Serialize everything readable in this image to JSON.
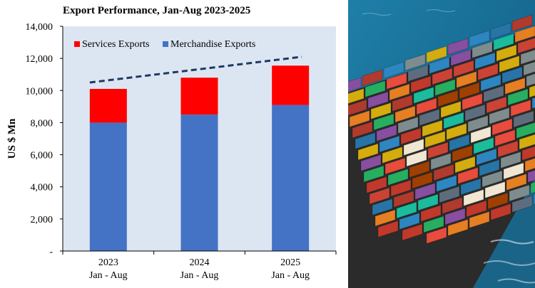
{
  "chart_data": {
    "type": "bar",
    "stacked": true,
    "title": "Export Performance, Jan-Aug  2023-2025",
    "xlabel": "",
    "ylabel": "US $ Mn",
    "categories": [
      {
        "year": "2023",
        "period": "Jan - Aug"
      },
      {
        "year": "2024",
        "period": "Jan - Aug"
      },
      {
        "year": "2025",
        "period": "Jan - Aug"
      }
    ],
    "series": [
      {
        "name": "Merchandise Exports",
        "color": "#4472C4",
        "values": [
          8000,
          8500,
          9100
        ]
      },
      {
        "name": "Services Exports",
        "color": "#FF0000",
        "values": [
          2100,
          2300,
          2450
        ]
      }
    ],
    "trendline": {
      "style": "dashed",
      "color": "#1F3864",
      "values": [
        10500,
        11300,
        12100
      ]
    },
    "ylim": [
      0,
      14000
    ],
    "yticks": [
      "-",
      "2,000",
      "4,000",
      "6,000",
      "8,000",
      "10,000",
      "12,000",
      "14,000"
    ],
    "plot_background": "#DCE6F2",
    "grid": false,
    "legend_position": "top-left"
  },
  "image": {
    "subject": "container-ship"
  }
}
